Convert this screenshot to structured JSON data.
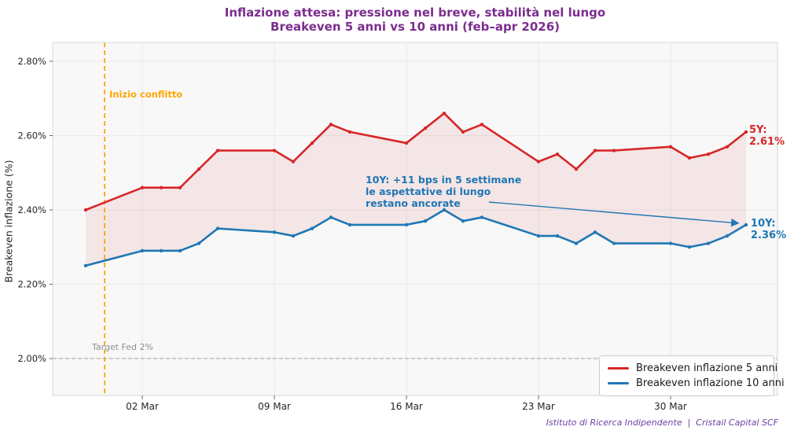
{
  "title": {
    "line1": "Inflazione attesa: pressione nel breve, stabilità nel lungo",
    "line2": "Breakeven 5 anni vs 10 anni (feb–apr 2026)"
  },
  "footer": "Istituto di Ricerca Indipendente  |  Cristail Capital SCF",
  "annotations": {
    "conflict_label": "Inizio conflitto",
    "target_label": "Target Fed 2%",
    "note_line1": "10Y: +11 bps in 5 settimane",
    "note_line2": "le aspettative di lungo",
    "note_line3": "restano ancorate",
    "end_label_5y": "5Y: 2.61%",
    "end_label_10y": "10Y: 2.36%"
  },
  "legend": {
    "items": [
      {
        "label": "Breakeven inflazione 5 anni",
        "color": "#d62728"
      },
      {
        "label": "Breakeven inflazione 10 anni",
        "color": "#1f77b4"
      }
    ]
  },
  "colors": {
    "title_purple": "#7b2d8e",
    "footer_purple": "#6b3fa5",
    "red_5y": "#d62728",
    "blue_10y": "#1f77b4",
    "conflict_orange": "#ffa500",
    "target_gray": "#b0b0b0",
    "plot_background": "#f8f8f9",
    "grid": "#e9e9e9",
    "band_fill": "rgba(214,39,40,0.09)"
  },
  "chart_data": {
    "type": "line",
    "title": "Inflazione attesa: pressione nel breve, stabilità nel lungo",
    "subtitle": "Breakeven 5 anni vs 10 anni (feb–apr 2026)",
    "ylabel": "Breakeven inflazione (%)",
    "xlabel": "",
    "ylim": [
      1.89,
      2.85
    ],
    "grid": true,
    "legend_position": "lower right",
    "dates": [
      "27 Feb",
      "02 Mar",
      "03 Mar",
      "04 Mar",
      "05 Mar",
      "06 Mar",
      "09 Mar",
      "10 Mar",
      "11 Mar",
      "12 Mar",
      "13 Mar",
      "16 Mar",
      "17 Mar",
      "18 Mar",
      "19 Mar",
      "20 Mar",
      "23 Mar",
      "24 Mar",
      "25 Mar",
      "26 Mar",
      "27 Mar",
      "30 Mar",
      "31 Mar",
      "01 Apr",
      "02 Apr",
      "03 Apr"
    ],
    "day_offsets": [
      0,
      3,
      4,
      5,
      6,
      7,
      10,
      11,
      12,
      13,
      14,
      17,
      18,
      19,
      20,
      21,
      24,
      25,
      26,
      27,
      28,
      31,
      32,
      33,
      34,
      35
    ],
    "series": [
      {
        "name": "Breakeven inflazione 5 anni",
        "color": "#d62728",
        "values": [
          2.4,
          2.46,
          2.46,
          2.46,
          2.51,
          2.56,
          2.56,
          2.53,
          2.58,
          2.63,
          2.61,
          2.58,
          2.62,
          2.66,
          2.61,
          2.63,
          2.53,
          2.55,
          2.51,
          2.56,
          2.56,
          2.57,
          2.54,
          2.55,
          2.57,
          2.61
        ]
      },
      {
        "name": "Breakeven inflazione 10 anni",
        "color": "#1f77b4",
        "values": [
          2.25,
          2.29,
          2.29,
          2.29,
          2.31,
          2.35,
          2.34,
          2.33,
          2.35,
          2.38,
          2.36,
          2.36,
          2.37,
          2.4,
          2.37,
          2.38,
          2.33,
          2.33,
          2.31,
          2.34,
          2.31,
          2.31,
          2.3,
          2.31,
          2.33,
          2.36
        ]
      }
    ],
    "yticks": [
      {
        "label": "2.00%",
        "value": 2.0
      },
      {
        "label": "2.20%",
        "value": 2.2
      },
      {
        "label": "2.40%",
        "value": 2.4
      },
      {
        "label": "2.60%",
        "value": 2.6
      },
      {
        "label": "2.80%",
        "value": 2.8
      }
    ],
    "xticks": [
      {
        "label": "02 Mar",
        "day": 3
      },
      {
        "label": "09 Mar",
        "day": 10
      },
      {
        "label": "16 Mar",
        "day": 17
      },
      {
        "label": "23 Mar",
        "day": 24
      },
      {
        "label": "30 Mar",
        "day": 31
      }
    ],
    "events": {
      "conflict_line_day": 1,
      "target_fed_value": 2.0
    }
  }
}
